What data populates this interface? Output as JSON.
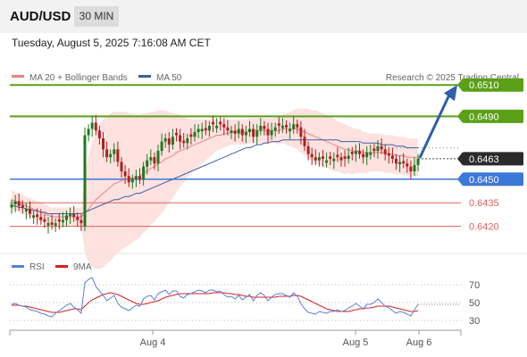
{
  "header": {
    "symbol": "AUD/USD",
    "timeframe": "30 MIN"
  },
  "datetime": "Tuesday, August 5, 2025 7:16:08 AM CET",
  "watermark": "Research © 2025 Trading Central",
  "colors": {
    "up": "#1e7a1e",
    "down": "#b02020",
    "resistance": "#5aa017",
    "support": "#3c78d8",
    "minor": "#e06060",
    "band": "#fde2e0",
    "ma20": "#f08080",
    "ma50": "#3a5fa0",
    "rsi": "#5b7fd6",
    "rsi_ma": "#d62020",
    "arrow": "#2f5fa8"
  },
  "chart_data": [
    {
      "type": "candlestick",
      "legend": [
        {
          "name": "MA 20 + Bollinger Bands",
          "color": "#f08080"
        },
        {
          "name": "MA 50",
          "color": "#3a5fa0"
        }
      ],
      "x_ticks": [
        "Aug 4",
        "Aug 5",
        "Aug 6"
      ],
      "ylim": [
        0.6405,
        0.653
      ],
      "last_price": "0.6463",
      "levels": [
        {
          "label": "0.6510",
          "value": 0.651,
          "role": "target"
        },
        {
          "label": "0.6490",
          "value": 0.649,
          "role": "resistance"
        },
        {
          "label": "0.6450",
          "value": 0.645,
          "role": "pivot"
        },
        {
          "label": "0.6435",
          "value": 0.6435,
          "role": "support"
        },
        {
          "label": "0.6420",
          "value": 0.642,
          "role": "support"
        }
      ],
      "forecast_arrow": {
        "from": 0.6463,
        "to": 0.651,
        "direction": "up"
      },
      "close": [
        0.6434,
        0.6436,
        0.6433,
        0.6432,
        0.6431,
        0.6428,
        0.6427,
        0.6426,
        0.6424,
        0.6423,
        0.6422,
        0.6421,
        0.6422,
        0.6423,
        0.6424,
        0.6427,
        0.6428,
        0.6426,
        0.6424,
        0.6422,
        0.6478,
        0.6482,
        0.6486,
        0.6481,
        0.6476,
        0.6469,
        0.6464,
        0.6466,
        0.6469,
        0.6461,
        0.6455,
        0.6452,
        0.6448,
        0.645,
        0.6452,
        0.645,
        0.6458,
        0.6462,
        0.6464,
        0.646,
        0.6468,
        0.6474,
        0.6476,
        0.6472,
        0.6477,
        0.6478,
        0.6474,
        0.6473,
        0.6476,
        0.6477,
        0.648,
        0.6482,
        0.6482,
        0.6481,
        0.6484,
        0.6485,
        0.6484,
        0.6485,
        0.6483,
        0.6481,
        0.6481,
        0.6479,
        0.6482,
        0.6478,
        0.648,
        0.6482,
        0.6477,
        0.6481,
        0.6484,
        0.6482,
        0.6478,
        0.6481,
        0.6483,
        0.6484,
        0.6484,
        0.6483,
        0.6482,
        0.6485,
        0.6483,
        0.6477,
        0.6471,
        0.6466,
        0.6464,
        0.6462,
        0.6464,
        0.6463,
        0.6462,
        0.6463,
        0.6463,
        0.6464,
        0.6462,
        0.6463,
        0.6465,
        0.6466,
        0.6468,
        0.6466,
        0.6464,
        0.6467,
        0.6467,
        0.6468,
        0.6471,
        0.6469,
        0.6466,
        0.6465,
        0.6463,
        0.646,
        0.6461,
        0.646,
        0.6458,
        0.6455,
        0.6459,
        0.6463
      ],
      "ma20": [
        0.6437,
        0.6436,
        0.6435,
        0.6434,
        0.6433,
        0.6432,
        0.6431,
        0.643,
        0.6429,
        0.6428,
        0.6427,
        0.6426,
        0.6426,
        0.6426,
        0.6426,
        0.6426,
        0.6426,
        0.6426,
        0.6426,
        0.6426,
        0.6428,
        0.6431,
        0.6434,
        0.6437,
        0.6439,
        0.6441,
        0.6443,
        0.6445,
        0.6447,
        0.6448,
        0.6449,
        0.645,
        0.645,
        0.6451,
        0.6451,
        0.6452,
        0.6454,
        0.6455,
        0.6457,
        0.6458,
        0.646,
        0.6461,
        0.6463,
        0.6464,
        0.6465,
        0.6467,
        0.6468,
        0.6469,
        0.647,
        0.6471,
        0.6472,
        0.6473,
        0.6474,
        0.6475,
        0.6476,
        0.6477,
        0.6478,
        0.6478,
        0.6479,
        0.6479,
        0.648,
        0.648,
        0.648,
        0.648,
        0.648,
        0.6481,
        0.6481,
        0.6481,
        0.6481,
        0.6481,
        0.6481,
        0.6481,
        0.6481,
        0.6481,
        0.6482,
        0.6482,
        0.6482,
        0.6482,
        0.6482,
        0.6481,
        0.648,
        0.6479,
        0.6478,
        0.6477,
        0.6476,
        0.6475,
        0.6474,
        0.6473,
        0.6472,
        0.6471,
        0.647,
        0.6469,
        0.6469,
        0.6468,
        0.6468,
        0.6468,
        0.6467,
        0.6467,
        0.6467,
        0.6467,
        0.6467,
        0.6467,
        0.6466,
        0.6466,
        0.6466,
        0.6465,
        0.6465,
        0.6465,
        0.6464,
        0.6464,
        0.6464,
        0.6464
      ],
      "bb_width": [
        0.0006,
        0.0006,
        0.0006,
        0.0006,
        0.0006,
        0.0006,
        0.0006,
        0.0006,
        0.0006,
        0.0006,
        0.0006,
        0.0006,
        0.0006,
        0.0006,
        0.0006,
        0.0006,
        0.0006,
        0.0006,
        0.0006,
        0.0006,
        0.0025,
        0.0034,
        0.004,
        0.0044,
        0.0046,
        0.0047,
        0.0047,
        0.0047,
        0.0046,
        0.0045,
        0.0044,
        0.0043,
        0.0042,
        0.0041,
        0.004,
        0.0039,
        0.0038,
        0.0037,
        0.0036,
        0.0035,
        0.0034,
        0.0033,
        0.0031,
        0.0029,
        0.0027,
        0.0025,
        0.0023,
        0.0021,
        0.0019,
        0.0017,
        0.0016,
        0.0015,
        0.0014,
        0.0013,
        0.0012,
        0.0011,
        0.001,
        0.0009,
        0.0009,
        0.0008,
        0.0008,
        0.0008,
        0.0008,
        0.0008,
        0.0008,
        0.0008,
        0.0008,
        0.0008,
        0.0008,
        0.0008,
        0.0008,
        0.0008,
        0.0008,
        0.0009,
        0.0009,
        0.001,
        0.0011,
        0.0012,
        0.0013,
        0.0014,
        0.0015,
        0.0016,
        0.0016,
        0.0017,
        0.0017,
        0.0017,
        0.0017,
        0.0017,
        0.0017,
        0.0016,
        0.0016,
        0.0016,
        0.0015,
        0.0015,
        0.0014,
        0.0014,
        0.0013,
        0.0013,
        0.0012,
        0.0012,
        0.0012,
        0.0012,
        0.0012,
        0.0012,
        0.0012,
        0.0012,
        0.0012,
        0.0012,
        0.0012,
        0.0012,
        0.0012,
        0.0012
      ],
      "ma50": [
        0.6433,
        0.6433,
        0.6432,
        0.6432,
        0.6431,
        0.6431,
        0.643,
        0.643,
        0.6429,
        0.6429,
        0.6428,
        0.6428,
        0.6428,
        0.6428,
        0.6428,
        0.6428,
        0.6428,
        0.6428,
        0.6428,
        0.6428,
        0.6429,
        0.643,
        0.6431,
        0.6432,
        0.6433,
        0.6434,
        0.6435,
        0.6436,
        0.6437,
        0.6437,
        0.6438,
        0.6439,
        0.6439,
        0.644,
        0.6441,
        0.6441,
        0.6442,
        0.6443,
        0.6444,
        0.6445,
        0.6446,
        0.6447,
        0.6448,
        0.6449,
        0.645,
        0.6451,
        0.6452,
        0.6453,
        0.6454,
        0.6455,
        0.6456,
        0.6457,
        0.6458,
        0.6459,
        0.646,
        0.6461,
        0.6462,
        0.6463,
        0.6464,
        0.6465,
        0.6466,
        0.6467,
        0.6468,
        0.6469,
        0.647,
        0.647,
        0.6471,
        0.6472,
        0.6472,
        0.6473,
        0.6473,
        0.6474,
        0.6474,
        0.6474,
        0.6475,
        0.6475,
        0.6475,
        0.6475,
        0.6475,
        0.6475,
        0.6475,
        0.6475,
        0.6475,
        0.6475,
        0.6475,
        0.6475,
        0.6475,
        0.6475,
        0.6475,
        0.6475,
        0.6474,
        0.6474,
        0.6474,
        0.6474,
        0.6474,
        0.6474,
        0.6473,
        0.6473,
        0.6473,
        0.6473,
        0.6473,
        0.6472,
        0.6472,
        0.6472,
        0.6472,
        0.6471,
        0.6471,
        0.6471,
        0.647,
        0.647,
        0.647,
        0.647
      ]
    },
    {
      "type": "line",
      "legend": [
        {
          "name": "RSI",
          "color": "#5b7fd6"
        },
        {
          "name": "9MA",
          "color": "#d62020"
        }
      ],
      "y_ticks": [
        "70",
        "50",
        "30"
      ],
      "ylim": [
        20,
        80
      ],
      "rsi": [
        48,
        49,
        47,
        46,
        45,
        42,
        41,
        40,
        38,
        37,
        35,
        34,
        38,
        41,
        44,
        47,
        49,
        45,
        42,
        38,
        72,
        76,
        78,
        68,
        63,
        58,
        52,
        55,
        58,
        49,
        45,
        43,
        41,
        44,
        47,
        46,
        54,
        57,
        58,
        53,
        60,
        62,
        64,
        59,
        63,
        63,
        57,
        55,
        59,
        60,
        62,
        64,
        63,
        61,
        64,
        64,
        62,
        63,
        59,
        56,
        57,
        54,
        58,
        53,
        56,
        59,
        52,
        58,
        61,
        58,
        52,
        56,
        59,
        60,
        60,
        58,
        56,
        61,
        57,
        49,
        43,
        39,
        38,
        37,
        40,
        39,
        38,
        40,
        40,
        42,
        40,
        41,
        44,
        46,
        49,
        46,
        43,
        48,
        48,
        50,
        54,
        50,
        46,
        44,
        41,
        38,
        40,
        39,
        37,
        35,
        42,
        48
      ],
      "rsi_ma": [
        47,
        47,
        47,
        46,
        46,
        45,
        44,
        43,
        42,
        41,
        40,
        39,
        39,
        39,
        40,
        41,
        42,
        43,
        43,
        42,
        46,
        50,
        53,
        55,
        57,
        59,
        60,
        61,
        60,
        59,
        57,
        55,
        53,
        51,
        49,
        48,
        48,
        49,
        50,
        51,
        52,
        54,
        56,
        57,
        58,
        59,
        60,
        60,
        60,
        60,
        60,
        60,
        60,
        60,
        60,
        61,
        61,
        61,
        61,
        60,
        60,
        59,
        59,
        58,
        57,
        57,
        56,
        56,
        56,
        56,
        56,
        56,
        56,
        57,
        57,
        57,
        57,
        58,
        58,
        57,
        55,
        53,
        51,
        49,
        47,
        45,
        43,
        42,
        41,
        40,
        40,
        40,
        40,
        41,
        42,
        43,
        43,
        44,
        44,
        45,
        46,
        46,
        46,
        46,
        45,
        44,
        43,
        42,
        41,
        40,
        40,
        41
      ]
    }
  ]
}
